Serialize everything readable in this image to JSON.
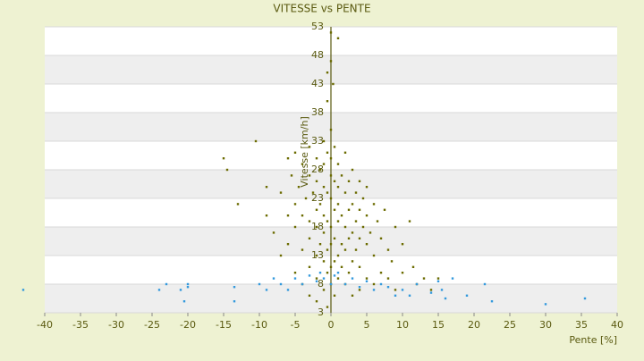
{
  "chart_data": {
    "type": "scatter",
    "title": "VITESSE vs PENTE",
    "x_label": "Pente [%]",
    "y_label": "Vitesse [km/h]",
    "xlim": [
      -40,
      40
    ],
    "xticks": [
      -40,
      -35,
      -30,
      -25,
      -20,
      -15,
      -10,
      -5,
      0,
      5,
      10,
      15,
      20,
      25,
      30,
      35,
      40
    ],
    "ylim": [
      3,
      53
    ],
    "yticks": [
      3,
      8,
      13,
      18,
      23,
      28,
      33,
      38,
      43,
      48,
      53
    ],
    "grid": true,
    "series": [
      {
        "color": "#6b6b00",
        "x": [
          -15,
          -14.5,
          -13,
          -10.5,
          -9,
          -9,
          -8,
          -7,
          -7,
          -6,
          -6,
          -6,
          -5.5,
          -5,
          -5,
          -5,
          -5,
          -4.5,
          -4,
          -4,
          -4,
          -4,
          -3.5,
          -3,
          -3,
          -3,
          -3,
          -3,
          -3,
          -2.5,
          -2,
          -2,
          -2,
          -2,
          -2,
          -2,
          -2,
          -1.5,
          -1.5,
          -1.5,
          -1,
          -1,
          -1,
          -1,
          -1,
          -1,
          -1,
          -0.5,
          -0.5,
          -0.5,
          -0.5,
          -0.5,
          -0.5,
          -0.5,
          -0.5,
          0,
          0,
          0,
          0,
          0,
          0,
          0,
          0,
          0,
          0,
          0.3,
          0.5,
          0.5,
          0.5,
          0.5,
          0.5,
          0.5,
          1,
          1,
          1,
          1,
          1,
          1,
          1,
          1.5,
          1.5,
          1.5,
          1.5,
          2,
          2,
          2,
          2,
          2,
          2.5,
          2.5,
          2.5,
          2.5,
          3,
          3,
          3,
          3,
          3,
          3.5,
          3.5,
          3.5,
          4,
          4,
          4,
          4,
          4,
          4.5,
          4.5,
          5,
          5,
          5,
          5,
          5.5,
          6,
          6,
          6,
          6.5,
          7,
          7,
          7.5,
          8,
          8,
          8.5,
          9,
          9,
          10,
          10,
          11,
          11.5,
          12,
          13,
          14,
          15
        ],
        "values": [
          30,
          28,
          22,
          33,
          25,
          20,
          17,
          24,
          13,
          30,
          20,
          15,
          27,
          31,
          22,
          18,
          10,
          25,
          29,
          20,
          14,
          8,
          23,
          32,
          27,
          19,
          16,
          11,
          6,
          24,
          30,
          26,
          21,
          18,
          13,
          9,
          5,
          28,
          22,
          15,
          33,
          29,
          25,
          20,
          17,
          12,
          7,
          45,
          40,
          31,
          24,
          19,
          14,
          10,
          4,
          52,
          47,
          35,
          30,
          27,
          23,
          18,
          15,
          11,
          8,
          43,
          32,
          26,
          21,
          16,
          12,
          6,
          51,
          29,
          25,
          22,
          19,
          13,
          9,
          27,
          20,
          15,
          11,
          31,
          24,
          18,
          14,
          8,
          26,
          21,
          16,
          10,
          28,
          22,
          17,
          12,
          6,
          24,
          19,
          14,
          26,
          21,
          16,
          11,
          7,
          23,
          18,
          25,
          20,
          15,
          9,
          17,
          22,
          13,
          8,
          19,
          16,
          10,
          21,
          14,
          9,
          12,
          18,
          7,
          15,
          10,
          19,
          11,
          8,
          9,
          7,
          9
        ]
      },
      {
        "color": "#3399dd",
        "x": [
          -43,
          -24,
          -23,
          -21,
          -20.5,
          -20,
          -20,
          -13.5,
          -13.5,
          -10,
          -9,
          -8,
          -7,
          -6,
          -5,
          -4,
          -3,
          -2,
          -1.5,
          -1,
          0,
          0.5,
          1,
          2,
          3,
          4,
          5,
          6,
          7,
          8,
          9,
          10,
          11,
          12,
          14,
          15,
          15.5,
          16,
          17,
          19,
          21.5,
          22.5,
          30,
          35.5
        ],
        "values": [
          7,
          7,
          8,
          7,
          5,
          8,
          7.5,
          5,
          7.5,
          8,
          7,
          9,
          8,
          7,
          9,
          8,
          9.5,
          8.5,
          10,
          9,
          8,
          9.5,
          10,
          8,
          9,
          7.5,
          8.5,
          7,
          8,
          7.5,
          6,
          7,
          6,
          8,
          6.5,
          8.5,
          7,
          5.5,
          9,
          6,
          8,
          5,
          4.5,
          5.5
        ]
      }
    ]
  }
}
